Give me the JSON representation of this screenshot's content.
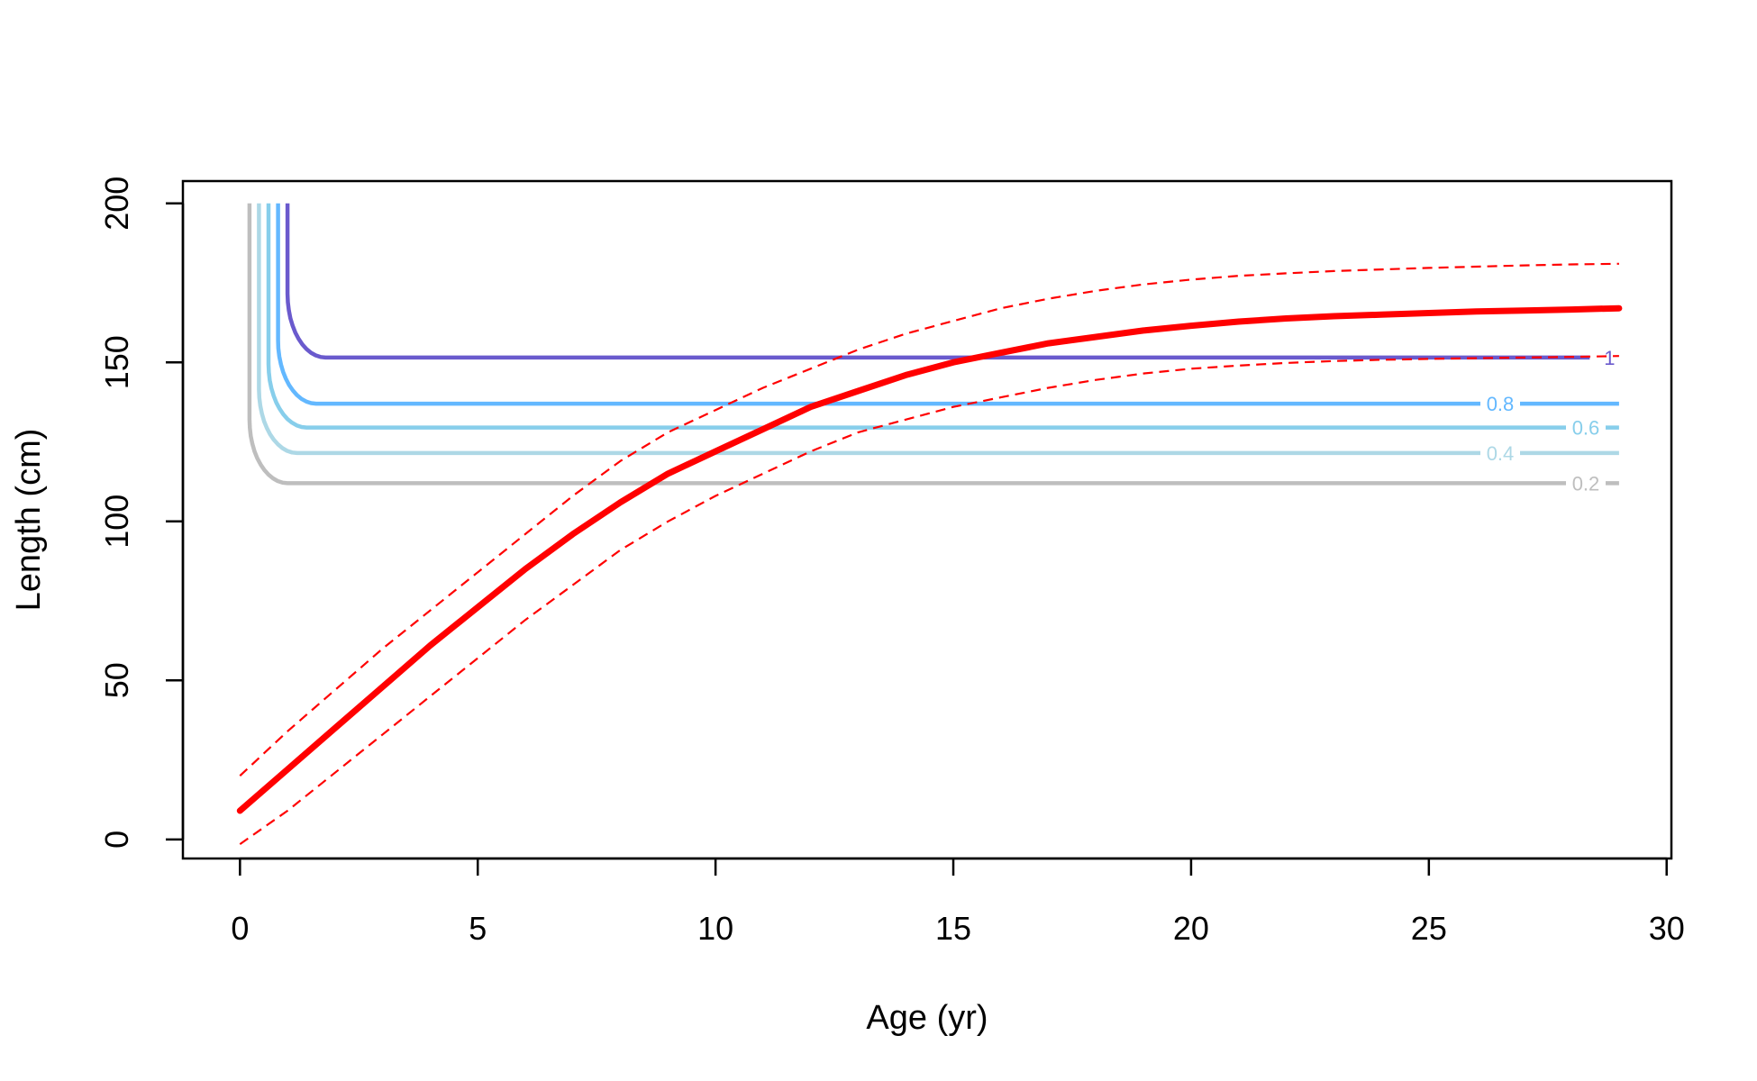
{
  "chart_data": {
    "type": "line",
    "title": "",
    "xlabel": "Age (yr)",
    "ylabel": "Length (cm)",
    "xlim": [
      -1.2,
      30.1
    ],
    "ylim": [
      -6,
      207
    ],
    "x_ticks": [
      0,
      5,
      10,
      15,
      20,
      25,
      30
    ],
    "y_ticks": [
      0,
      50,
      100,
      150,
      200
    ],
    "grid": false,
    "legend": "none",
    "growth_curve": {
      "color": "#ff0000",
      "style": "solid",
      "x": [
        0,
        1,
        2,
        3,
        4,
        5,
        6,
        7,
        8,
        9,
        10,
        11,
        12,
        13,
        14,
        15,
        16,
        17,
        18,
        19,
        20,
        21,
        22,
        23,
        24,
        25,
        26,
        27,
        28,
        29
      ],
      "y": [
        9,
        22,
        35,
        48,
        61,
        73,
        85,
        96,
        106,
        115,
        122,
        129,
        136,
        141,
        146,
        150,
        153,
        156,
        158,
        160,
        161.5,
        162.8,
        163.8,
        164.5,
        165,
        165.5,
        166,
        166.3,
        166.6,
        167
      ]
    },
    "upper_bound": {
      "color": "#ff0000",
      "style": "dashed",
      "x": [
        0,
        1,
        2,
        3,
        4,
        5,
        6,
        7,
        8,
        9,
        10,
        11,
        12,
        13,
        14,
        15,
        16,
        17,
        18,
        19,
        20,
        21,
        22,
        23,
        24,
        25,
        26,
        27,
        28,
        29
      ],
      "y": [
        20,
        34,
        47,
        60,
        72,
        84,
        96,
        108,
        119,
        128,
        135,
        142,
        148,
        154,
        159,
        163,
        167,
        170,
        172.5,
        174.5,
        176,
        177.2,
        178,
        178.7,
        179.2,
        179.7,
        180.1,
        180.5,
        180.8,
        181
      ]
    },
    "lower_bound": {
      "color": "#ff0000",
      "style": "dashed",
      "x": [
        0,
        1,
        2,
        3,
        4,
        5,
        6,
        7,
        8,
        9,
        10,
        11,
        12,
        13,
        14,
        15,
        16,
        17,
        18,
        19,
        20,
        21,
        22,
        23,
        24,
        25,
        26,
        27,
        28,
        29
      ],
      "y": [
        -1.5,
        9,
        21,
        33,
        45,
        57,
        69,
        80,
        91,
        100,
        108,
        115,
        122,
        128,
        132,
        136,
        139,
        142,
        144.5,
        146.5,
        148,
        149,
        149.8,
        150.4,
        150.8,
        151.1,
        151.3,
        151.5,
        151.7,
        152
      ]
    },
    "contours": [
      {
        "label": "0.2",
        "level": 0.2,
        "color": "#bebebe",
        "x_vertical": 0.2,
        "y_flat": 112,
        "label_x": 28.3
      },
      {
        "label": "0.4",
        "level": 0.4,
        "color": "#add8e6",
        "x_vertical": 0.4,
        "y_flat": 121.5,
        "label_x": 26.5
      },
      {
        "label": "0.6",
        "level": 0.6,
        "color": "#87ceeb",
        "x_vertical": 0.6,
        "y_flat": 129.5,
        "label_x": 28.3
      },
      {
        "label": "0.8",
        "level": 0.8,
        "color": "#63b8ff",
        "x_vertical": 0.8,
        "y_flat": 137,
        "label_x": 26.5
      },
      {
        "label": "1",
        "level": 1,
        "color": "#6a5acd",
        "x_vertical": 1.0,
        "y_flat": 151.5,
        "label_x": 28.8
      }
    ]
  }
}
